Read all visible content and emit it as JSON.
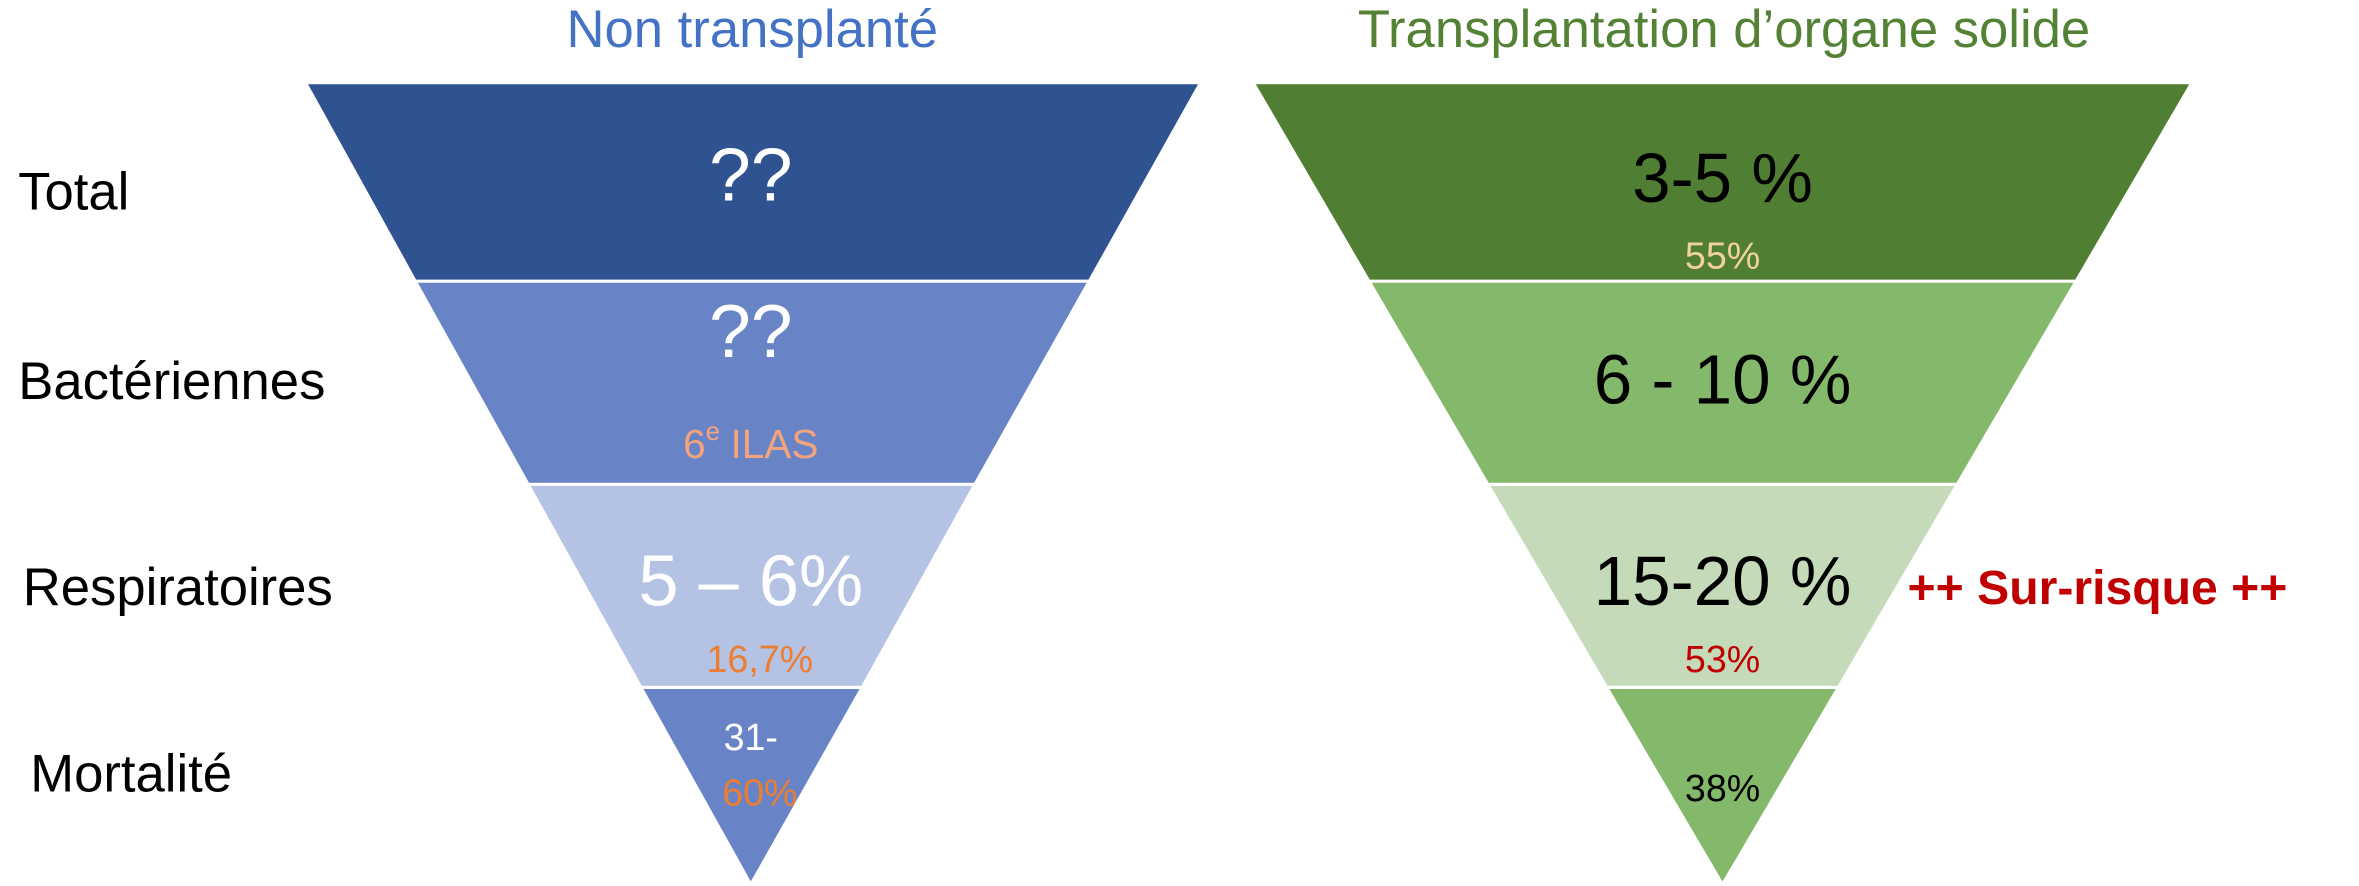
{
  "titles": {
    "left": "Non transplanté",
    "right": "Transplantation d’organe solide"
  },
  "rows": [
    "Total",
    "Bactériennes",
    "Respiratoires",
    "Mortalité"
  ],
  "left": [
    {
      "main": "??"
    },
    {
      "main": "??",
      "note": {
        "base": "6",
        "sup": "e",
        "rest": "ILAS"
      }
    },
    {
      "main": "5 – 6%",
      "note": "16,7%"
    },
    {
      "main": "31-",
      "note": "60%"
    }
  ],
  "right": [
    {
      "main": "3-5 %",
      "note": "55%"
    },
    {
      "main": "6 - 10 %"
    },
    {
      "main": "15-20 %",
      "note": "53%"
    },
    {
      "main": "38%"
    }
  ],
  "annotation": "++ Sur-risque ++"
}
